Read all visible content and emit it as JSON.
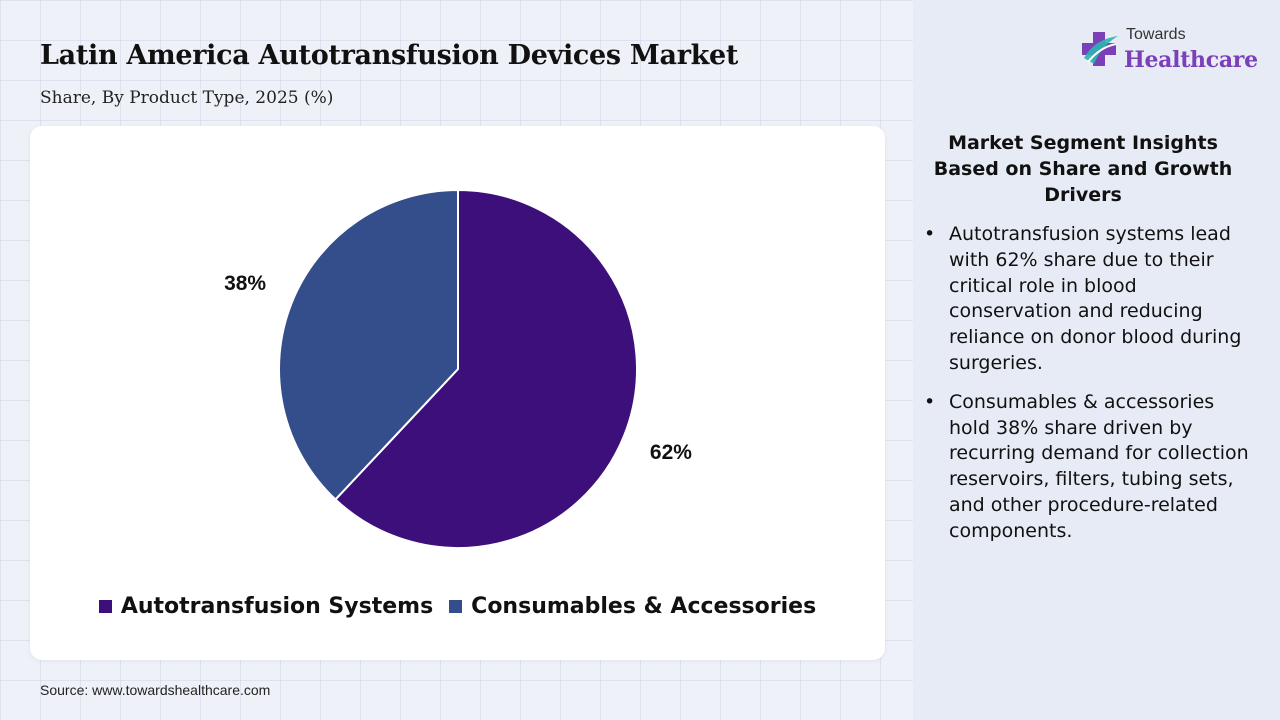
{
  "header": {
    "title": "Latin America Autotransfusion Devices Market",
    "subtitle": "Share, By Product Type, 2025 (%)"
  },
  "logo": {
    "small_text": "Towards",
    "big_text": "Healthcare"
  },
  "chart_data": {
    "type": "pie",
    "title": "Latin America Autotransfusion Devices Market",
    "subtitle": "Share, By Product Type, 2025 (%)",
    "slices": [
      {
        "name": "Autotransfusion Systems",
        "value": 62,
        "label": "62%",
        "color": "#3d0f7a"
      },
      {
        "name": "Consumables & Accessories",
        "value": 38,
        "label": "38%",
        "color": "#344d8b"
      }
    ],
    "start": "12 o'clock",
    "direction": "clockwise",
    "legend_position": "bottom"
  },
  "insights": {
    "heading": "Market Segment Insights Based on Share and Growth Drivers",
    "bullet_symbol": "•",
    "items": [
      "Autotransfusion systems lead with 62% share due to their critical role in blood conservation and reducing reliance on donor blood during surgeries.",
      "Consumables & accessories hold 38% share driven by recurring demand for collection reservoirs, filters, tubing sets, and other procedure-related components."
    ]
  },
  "footer": {
    "source": "Source: www.towardshealthcare.com"
  },
  "colors": {
    "background": "#eef1f8",
    "panel": "#e6ebf5",
    "brand_purple": "#7b3fb8",
    "brand_teal": "#2bb5b0"
  }
}
